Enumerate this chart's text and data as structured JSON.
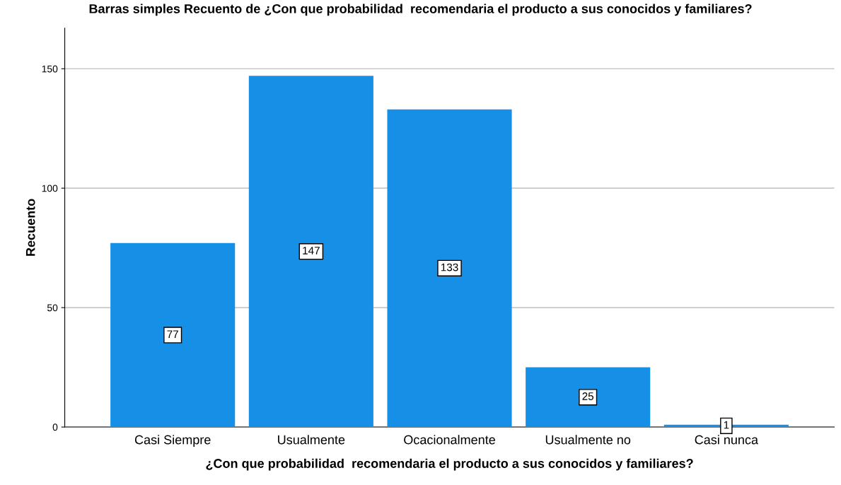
{
  "chart_data": {
    "type": "bar",
    "title": "Barras simples Recuento de ¿Con que probabilidad  recomendaria el producto a sus conocidos y familiares?",
    "xlabel": "¿Con que probabilidad  recomendaria el producto a sus conocidos y familiares?",
    "ylabel": "Recuento",
    "categories": [
      "Casi Siempre",
      "Usualmente",
      "Ocacionalmente",
      "Usualmente no",
      "Casi nunca"
    ],
    "values": [
      77,
      147,
      133,
      25,
      1
    ],
    "color": "#1590e6",
    "ylim": [
      0,
      167
    ],
    "yticks": [
      0,
      50,
      100,
      150
    ],
    "grid": "y",
    "data_labels": true
  }
}
